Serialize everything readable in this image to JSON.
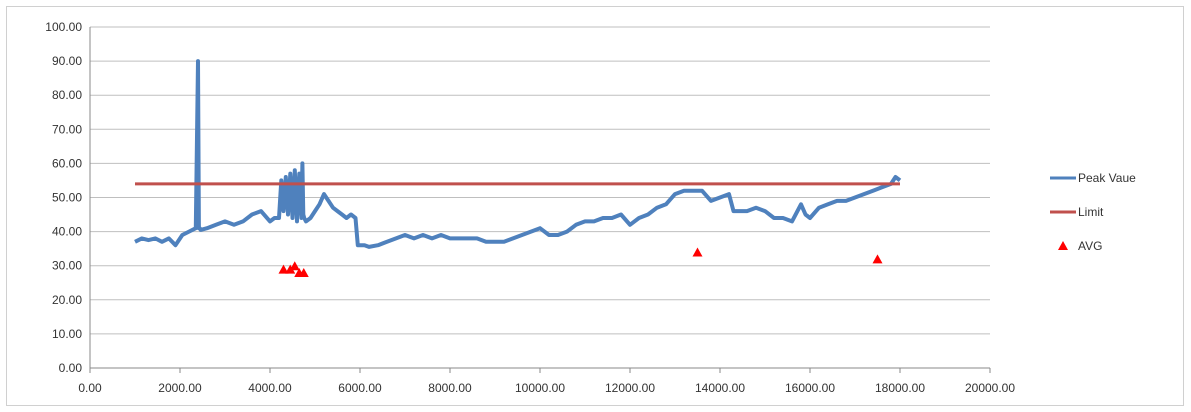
{
  "chart_data": {
    "type": "line",
    "title": "",
    "xlabel": "",
    "ylabel": "",
    "xlim": [
      0,
      20000
    ],
    "ylim": [
      0,
      100
    ],
    "x_ticks": [
      "0.00",
      "2000.00",
      "4000.00",
      "6000.00",
      "8000.00",
      "10000.00",
      "12000.00",
      "14000.00",
      "16000.00",
      "18000.00",
      "20000.00"
    ],
    "y_ticks": [
      "0.00",
      "10.00",
      "20.00",
      "30.00",
      "40.00",
      "50.00",
      "60.00",
      "70.00",
      "80.00",
      "90.00",
      "100.00"
    ],
    "grid": "horizontal",
    "legend_position": "right",
    "series": [
      {
        "name": "Peak Vaue",
        "kind": "line",
        "color": "#4f81bd",
        "x": [
          1000,
          1150,
          1300,
          1450,
          1600,
          1750,
          1900,
          2050,
          2200,
          2350,
          2400,
          2420,
          2440,
          2460,
          2600,
          2800,
          3000,
          3200,
          3400,
          3600,
          3800,
          4000,
          4100,
          4200,
          4250,
          4300,
          4350,
          4400,
          4450,
          4500,
          4550,
          4600,
          4650,
          4700,
          4720,
          4740,
          4760,
          4800,
          4900,
          5000,
          5100,
          5200,
          5300,
          5400,
          5500,
          5600,
          5700,
          5800,
          5900,
          5950,
          6000,
          6100,
          6200,
          6400,
          6600,
          6800,
          7000,
          7200,
          7400,
          7600,
          7800,
          8000,
          8200,
          8400,
          8600,
          8800,
          9000,
          9200,
          9400,
          9600,
          9800,
          10000,
          10200,
          10400,
          10600,
          10800,
          11000,
          11200,
          11400,
          11600,
          11800,
          12000,
          12200,
          12400,
          12600,
          12800,
          13000,
          13200,
          13400,
          13600,
          13800,
          14000,
          14200,
          14300,
          14400,
          14600,
          14800,
          15000,
          15200,
          15400,
          15600,
          15800,
          15900,
          16000,
          16200,
          16400,
          16600,
          16800,
          17000,
          17200,
          17400,
          17600,
          17800,
          17900,
          18000
        ],
        "y": [
          37,
          38,
          37.5,
          38,
          37,
          38,
          36,
          39,
          40,
          41,
          90,
          41,
          41,
          40.5,
          41,
          42,
          43,
          42,
          43,
          45,
          46,
          43,
          44,
          44,
          55,
          46,
          56,
          45,
          57,
          44,
          58,
          43,
          57,
          44,
          60,
          45,
          44,
          43,
          44,
          46,
          48,
          51,
          49,
          47,
          46,
          45,
          44,
          45,
          44,
          36,
          36,
          36,
          35.5,
          36,
          37,
          38,
          39,
          38,
          39,
          38,
          39,
          38,
          38,
          38,
          38,
          37,
          37,
          37,
          38,
          39,
          40,
          41,
          39,
          39,
          40,
          42,
          43,
          43,
          44,
          44,
          45,
          42,
          44,
          45,
          47,
          48,
          51,
          52,
          52,
          52,
          49,
          50,
          51,
          46,
          46,
          46,
          47,
          46,
          44,
          44,
          43,
          48,
          45,
          44,
          47,
          48,
          49,
          49,
          50,
          51,
          52,
          53,
          54,
          56,
          55
        ]
      },
      {
        "name": "Limit",
        "kind": "line",
        "color": "#c0504d",
        "x": [
          1000,
          18000
        ],
        "y": [
          54,
          54
        ]
      },
      {
        "name": "AVG",
        "kind": "scatter",
        "color": "#ff0000",
        "marker": "triangle",
        "x": [
          4300,
          4450,
          4550,
          4650,
          4750,
          13500,
          17500
        ],
        "y": [
          29,
          29,
          30,
          28,
          28,
          34,
          32
        ]
      }
    ]
  }
}
